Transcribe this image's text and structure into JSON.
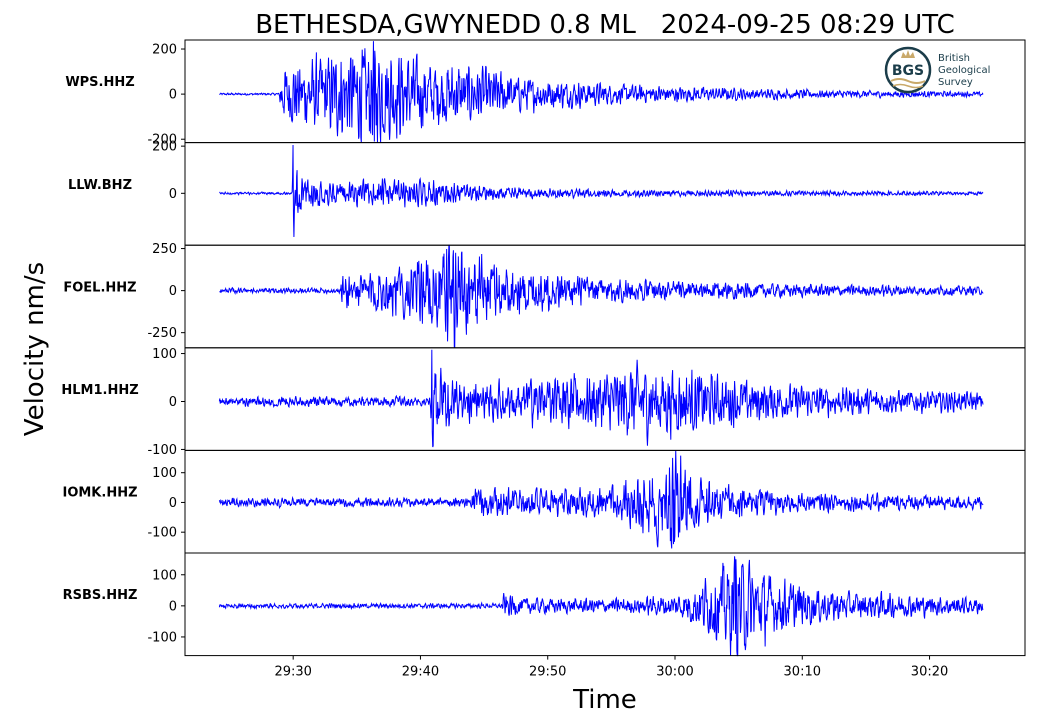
{
  "chart_data": {
    "type": "line",
    "title": "BETHESDA,GWYNEDD 0.8 ML   2024-09-25 08:29 UTC",
    "xlabel": "Time",
    "ylabel": "Velocity nm/s",
    "x_ticks": [
      "29:30",
      "29:40",
      "29:50",
      "30:00",
      "30:10",
      "30:20"
    ],
    "x_tick_seconds": [
      30,
      40,
      50,
      60,
      70,
      80
    ],
    "x_range_seconds": [
      21.5,
      87.5
    ],
    "trace_range_seconds": [
      24.2,
      84.2
    ],
    "line_color": "#0000ff",
    "grid": false,
    "logo": {
      "initials": "BGS",
      "lines": [
        "British",
        "Geological",
        "Survey"
      ],
      "placement": "top-right"
    },
    "series": [
      {
        "name": "WPS.HHZ",
        "ylim": [
          -215,
          240
        ],
        "yticks": [
          200,
          0,
          -200
        ],
        "ytick_labels": [
          "200",
          "0",
          "-200"
        ],
        "noise_amplitude": 4,
        "onset_seconds": 29.0,
        "envelope_seconds": [
          24.2,
          28.9,
          29.0,
          30,
          32,
          34,
          35.5,
          36.3,
          37,
          39,
          41,
          44,
          48,
          55,
          65,
          75,
          84.2
        ],
        "envelope_amplitude": [
          4,
          4,
          90,
          110,
          130,
          150,
          170,
          190,
          170,
          140,
          120,
          100,
          60,
          35,
          20,
          12,
          8
        ],
        "peak_max": 235,
        "peak_min": -210
      },
      {
        "name": "LLW.BHZ",
        "ylim": [
          -220,
          215
        ],
        "yticks": [
          200,
          0
        ],
        "ytick_labels": [
          "200",
          "0"
        ],
        "noise_amplitude": 4,
        "onset_seconds": 30.0,
        "envelope_seconds": [
          24.2,
          29.9,
          30.0,
          30.3,
          31,
          33,
          36,
          40,
          44,
          50,
          60,
          70,
          84.2
        ],
        "envelope_amplitude": [
          4,
          4,
          150,
          100,
          55,
          35,
          45,
          45,
          30,
          15,
          10,
          8,
          6
        ],
        "peak_max": 205,
        "peak_min": -185
      },
      {
        "name": "FOEL.HHZ",
        "ylim": [
          -340,
          270
        ],
        "yticks": [
          250,
          0,
          -250
        ],
        "ytick_labels": [
          "250",
          "0",
          "-250"
        ],
        "noise_amplitude": 12,
        "onset_seconds": 33.8,
        "envelope_seconds": [
          24.2,
          33.7,
          33.8,
          35,
          37,
          40,
          41.5,
          42.6,
          44,
          46,
          50,
          55,
          60,
          70,
          84.2
        ],
        "envelope_amplitude": [
          12,
          12,
          80,
          90,
          110,
          140,
          200,
          260,
          200,
          140,
          90,
          60,
          45,
          30,
          20
        ],
        "peak_max": 240,
        "peak_min": -335
      },
      {
        "name": "HLM1.HHZ",
        "ylim": [
          -102,
          112
        ],
        "yticks": [
          100,
          0,
          -100
        ],
        "ytick_labels": [
          "100",
          "0",
          "-100"
        ],
        "noise_amplitude": 8,
        "onset_seconds": 40.9,
        "envelope_seconds": [
          24.2,
          40.8,
          40.9,
          41.5,
          43,
          46,
          50,
          54,
          57,
          60,
          64,
          70,
          84.2
        ],
        "envelope_amplitude": [
          8,
          8,
          75,
          55,
          38,
          32,
          38,
          48,
          62,
          55,
          40,
          25,
          14
        ],
        "peak_max": 108,
        "peak_min": -95
      },
      {
        "name": "IOMK.HHZ",
        "ylim": [
          -170,
          175
        ],
        "yticks": [
          100,
          0,
          -100
        ],
        "ytick_labels": [
          "100",
          "0",
          "-100"
        ],
        "noise_amplitude": 12,
        "onset_seconds": 44.0,
        "envelope_seconds": [
          24.2,
          43.9,
          44.0,
          46,
          50,
          55,
          58,
          59.8,
          61,
          63,
          66,
          70,
          75,
          84.2
        ],
        "envelope_amplitude": [
          12,
          12,
          35,
          40,
          35,
          40,
          90,
          150,
          100,
          55,
          35,
          25,
          22,
          18
        ],
        "peak_max": 150,
        "peak_min": -140
      },
      {
        "name": "RSBS.HHZ",
        "ylim": [
          -160,
          170
        ],
        "yticks": [
          100,
          0,
          -100
        ],
        "ytick_labels": [
          "100",
          "0",
          "-100"
        ],
        "noise_amplitude": 6,
        "onset_seconds": 46.5,
        "envelope_seconds": [
          24.2,
          46.4,
          46.5,
          48,
          52,
          57,
          60,
          63,
          64.8,
          66,
          68,
          72,
          78,
          84.2
        ],
        "envelope_amplitude": [
          6,
          6,
          30,
          22,
          18,
          20,
          28,
          80,
          140,
          110,
          70,
          40,
          28,
          20
        ],
        "peak_max": 150,
        "peak_min": -145
      }
    ]
  }
}
